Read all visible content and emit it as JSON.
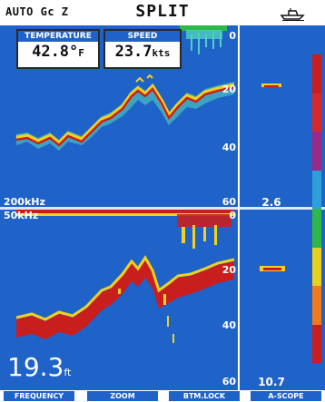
{
  "header": {
    "mode": "AUTO Gc Z",
    "title": "SPLIT"
  },
  "temperature": {
    "label": "TEMPERATURE",
    "value": "42.8°",
    "unit": "F"
  },
  "speed": {
    "label": "SPEED",
    "value": "23.7",
    "unit": "kts"
  },
  "top_panel": {
    "frequency": "200kHz",
    "depth_marks": [
      "0",
      "20",
      "40",
      "60"
    ],
    "ascope_value": "2.6"
  },
  "bottom_panel": {
    "frequency": "50kHz",
    "depth_marks": [
      "0",
      "20",
      "40",
      "60"
    ],
    "ascope_value": "10.7"
  },
  "depth_readout": {
    "value": "19.3",
    "unit": "ft"
  },
  "softkeys": [
    "FREQUENCY",
    "ZOOM",
    "BTM.LOCK",
    "A-SCOPE"
  ],
  "icons": {
    "vessel": "boat-icon"
  },
  "colors": {
    "water": "#1f63c8",
    "bottom_strong": "#c81e1e",
    "bottom_mid": "#f0d020",
    "bottom_weak": "#4fd0c0"
  },
  "color_scale": [
    "#c81e1e",
    "#d8282a",
    "#9a2a8a",
    "#2da0d8",
    "#2fb84a",
    "#e8d020",
    "#f07a20",
    "#c81e1e"
  ]
}
